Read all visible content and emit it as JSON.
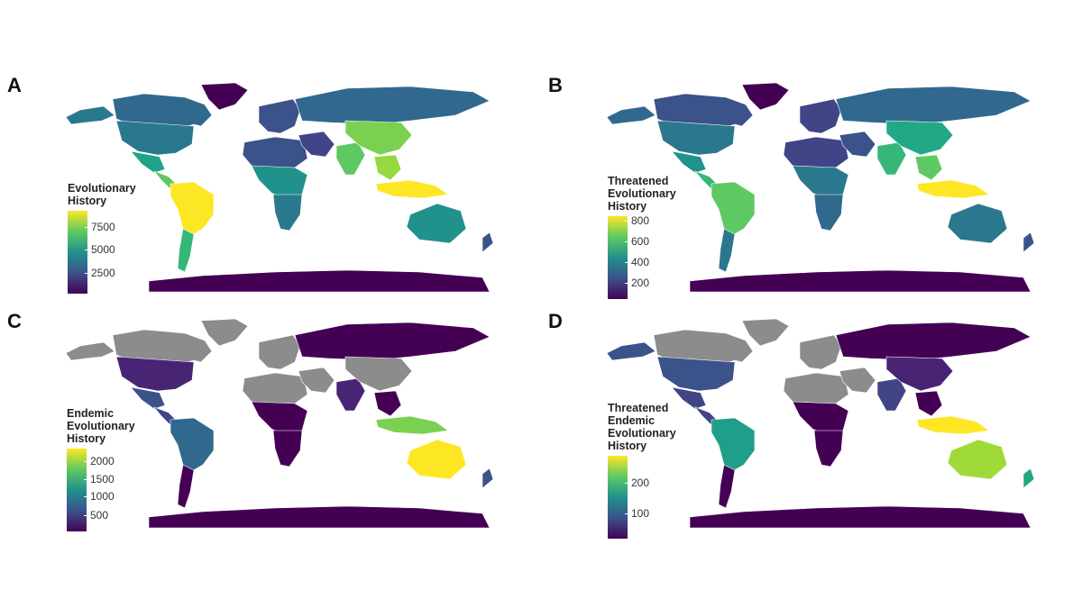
{
  "panels": [
    {
      "label": "A",
      "legend_title": "Evolutionary\nHistory",
      "ticks": [
        {
          "label": "7500",
          "frac": 0.8
        },
        {
          "label": "5000",
          "frac": 0.53
        },
        {
          "label": "2500",
          "frac": 0.25
        }
      ],
      "colors": {
        "northAmerica": "#31688e",
        "alaska": "#2a788e",
        "usa": "#2a788e",
        "mexico": "#20a386",
        "centralAmerica": "#5ec962",
        "southAmerica": "#fde725",
        "southernCone": "#35b779",
        "greenland": "#440154",
        "europe": "#3b528b",
        "russia": "#31688e",
        "northAfrica": "#3b528b",
        "centralAfrica": "#21918c",
        "southernAfrica": "#2a788e",
        "middleEast": "#414487",
        "southAsia": "#5ec962",
        "china": "#7ad151",
        "southeastAsia": "#95d840",
        "indonesia": "#fde725",
        "australia": "#21918c",
        "newZealand": "#3b528b",
        "antarctica": "#440154"
      }
    },
    {
      "label": "B",
      "legend_title": "Threatened\nEvolutionary\nHistory",
      "ticks": [
        {
          "label": "800",
          "frac": 0.95
        },
        {
          "label": "600",
          "frac": 0.7
        },
        {
          "label": "400",
          "frac": 0.45
        },
        {
          "label": "200",
          "frac": 0.2
        }
      ],
      "colors": {
        "northAmerica": "#3b528b",
        "alaska": "#31688e",
        "usa": "#2a788e",
        "mexico": "#21918c",
        "centralAmerica": "#35b779",
        "southAmerica": "#5ec962",
        "southernCone": "#2a788e",
        "greenland": "#440154",
        "europe": "#414487",
        "russia": "#31688e",
        "northAfrica": "#414487",
        "centralAfrica": "#2a788e",
        "southernAfrica": "#31688e",
        "middleEast": "#3b528b",
        "southAsia": "#35b779",
        "china": "#22a884",
        "southeastAsia": "#5ec962",
        "indonesia": "#fde725",
        "australia": "#2a788e",
        "newZealand": "#3b528b",
        "antarctica": "#440154"
      }
    },
    {
      "label": "C",
      "legend_title": "Endemic\nEvolutionary\nHistory",
      "ticks": [
        {
          "label": "2000",
          "frac": 0.85
        },
        {
          "label": "1500",
          "frac": 0.63
        },
        {
          "label": "1000",
          "frac": 0.42
        },
        {
          "label": "500",
          "frac": 0.2
        }
      ],
      "colors": {
        "northAmerica": "#8c8c8c",
        "alaska": "#8c8c8c",
        "usa": "#482475",
        "mexico": "#3b528b",
        "centralAmerica": "#414487",
        "southAmerica": "#31688e",
        "southernCone": "#440154",
        "greenland": "#8c8c8c",
        "europe": "#8c8c8c",
        "russia": "#440154",
        "northAfrica": "#8c8c8c",
        "centralAfrica": "#440154",
        "southernAfrica": "#440154",
        "middleEast": "#8c8c8c",
        "southAsia": "#482475",
        "china": "#8c8c8c",
        "southeastAsia": "#440154",
        "indonesia": "#7ad151",
        "australia": "#fde725",
        "newZealand": "#3b528b",
        "antarctica": "#440154"
      }
    },
    {
      "label": "D",
      "legend_title": "Threatened\nEndemic\nEvolutionary\nHistory",
      "ticks": [
        {
          "label": "200",
          "frac": 0.67
        },
        {
          "label": "100",
          "frac": 0.3
        }
      ],
      "colors": {
        "northAmerica": "#8c8c8c",
        "alaska": "#3b528b",
        "usa": "#3b528b",
        "mexico": "#414487",
        "centralAmerica": "#414487",
        "southAmerica": "#1f9e89",
        "southernCone": "#440154",
        "greenland": "#8c8c8c",
        "europe": "#8c8c8c",
        "russia": "#440154",
        "northAfrica": "#8c8c8c",
        "centralAfrica": "#440154",
        "southernAfrica": "#440154",
        "middleEast": "#8c8c8c",
        "southAsia": "#414487",
        "china": "#482475",
        "southeastAsia": "#440154",
        "indonesia": "#fde725",
        "australia": "#a0da39",
        "newZealand": "#22a884",
        "antarctica": "#440154"
      }
    }
  ]
}
